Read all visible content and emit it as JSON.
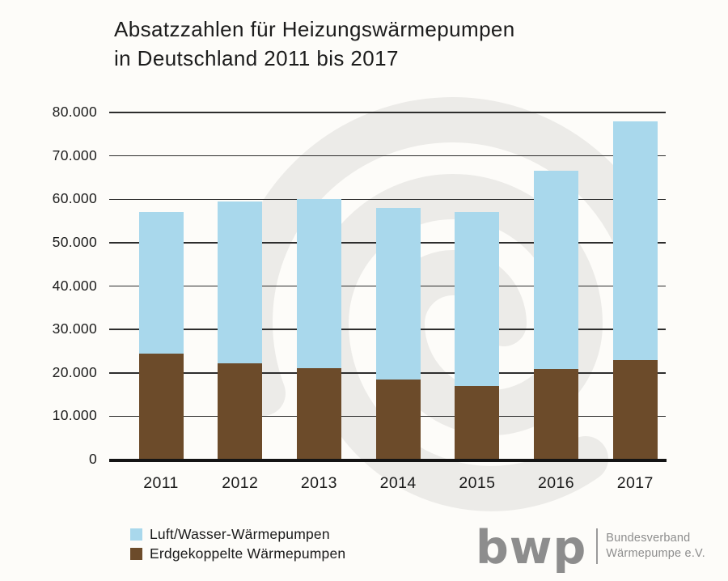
{
  "title": {
    "line1": "Absatzzahlen für Heizungswärmepumpen",
    "line2": "in Deutschland 2011 bis 2017"
  },
  "colors": {
    "air_water_blue": "#A9D8EC",
    "ground_brown": "#6C4B2A",
    "watermark_gray": "#ECEBE8",
    "grid": "#2D2D2D",
    "axis": "#141414",
    "text": "#1C1C1C",
    "logo_gray": "#8D8D8D"
  },
  "chart_data": {
    "type": "bar",
    "stacked": true,
    "title": "Absatzzahlen für Heizungswärmepumpen in Deutschland 2011 bis 2017",
    "categories": [
      "2011",
      "2012",
      "2013",
      "2014",
      "2015",
      "2016",
      "2017"
    ],
    "series": [
      {
        "name": "Luft/Wasser-Wärmepumpen",
        "color_key": "air_water_blue",
        "values": [
          32500,
          37300,
          39000,
          39500,
          40000,
          45700,
          55000
        ]
      },
      {
        "name": "Erdgekoppelte Wärmepumpen",
        "color_key": "ground_brown",
        "values": [
          24500,
          22200,
          21000,
          18500,
          17000,
          20800,
          23000
        ]
      }
    ],
    "totals": [
      57000,
      59500,
      60000,
      58000,
      57000,
      66500,
      78000
    ],
    "xlabel": "",
    "ylabel": "",
    "ylim": [
      0,
      80000
    ],
    "ytick_step": 10000,
    "ytick_labels": [
      "80.000",
      "70.000",
      "60.000",
      "50.000",
      "40.000",
      "30.000",
      "20.000",
      "10.000",
      "0"
    ],
    "grid": "horizontal",
    "legend_position": "bottom-left"
  },
  "logo": {
    "wordmark": "bwp",
    "org_line1": "Bundesverband",
    "org_line2": "Wärmepumpe e.V."
  }
}
